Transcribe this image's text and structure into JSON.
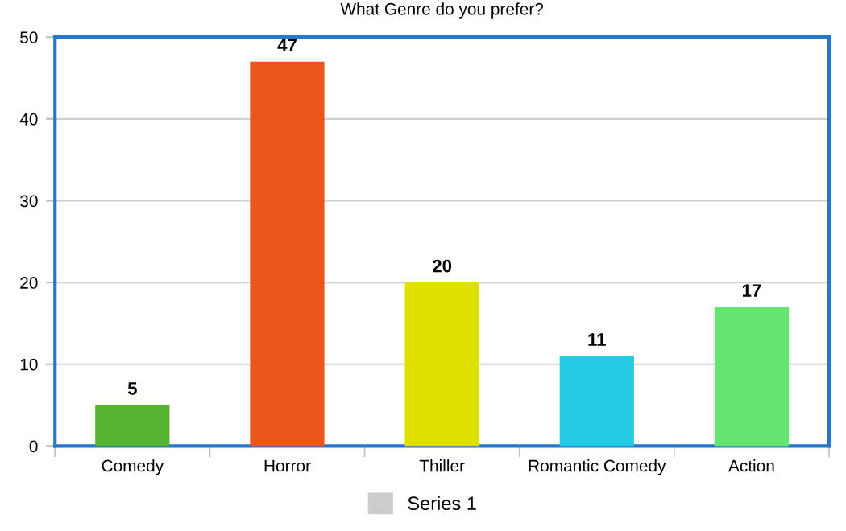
{
  "chart_data": {
    "type": "bar",
    "title": "What Genre do you prefer?",
    "categories": [
      "Comedy",
      "Horror",
      "Thiller",
      "Romantic Comedy",
      "Action"
    ],
    "series": [
      {
        "name": "Series 1",
        "color": "#cccccc",
        "colors": [
          "#55b332",
          "#eb561c",
          "#dfe000",
          "#24cbe5",
          "#64e572"
        ],
        "values": [
          5,
          47,
          20,
          11,
          17
        ]
      }
    ],
    "ylim": [
      0,
      50
    ],
    "yticks": [
      0,
      10,
      20,
      30,
      40,
      50
    ],
    "grid": "y",
    "legend": "bottom",
    "data_labels": true
  }
}
